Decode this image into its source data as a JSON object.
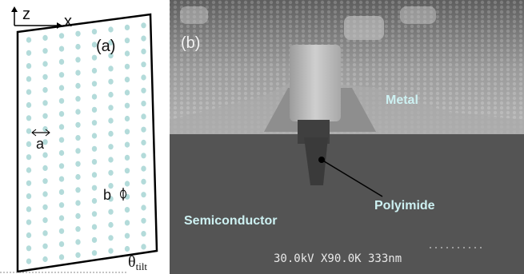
{
  "panel_a": {
    "axis_labels": [
      "z",
      "x"
    ],
    "label": "(a)",
    "lattice_labels": [
      "a",
      "b"
    ],
    "angle_symbol": "θ",
    "angle_subscript": "tilt"
  },
  "panel_b": {
    "label": "(b)",
    "annotations": [
      "Metal",
      "Polyimide",
      "Semiconductor"
    ],
    "scale_bar_text": "30.0kV X90.0K 333nm"
  }
}
